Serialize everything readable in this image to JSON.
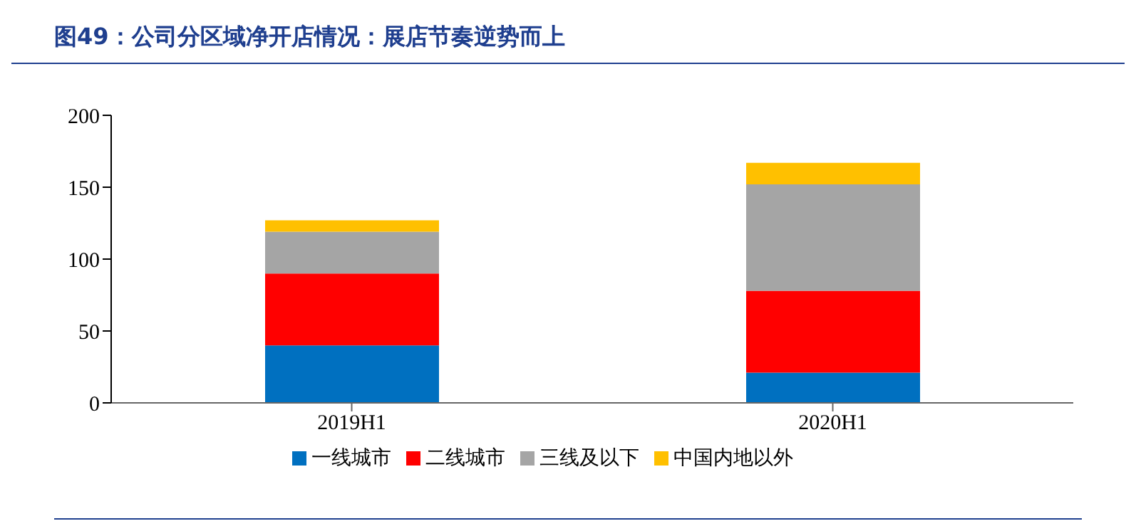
{
  "chart_data": {
    "type": "bar",
    "title": "图49：公司分区域净开店情况：展店节奏逆势而上",
    "categories": [
      "2019H1",
      "2020H1"
    ],
    "stacked": true,
    "series": [
      {
        "name": "一线城市",
        "color": "#0070c0",
        "values": [
          40,
          21
        ]
      },
      {
        "name": "二线城市",
        "color": "#ff0000",
        "values": [
          50,
          57
        ]
      },
      {
        "name": "三线及以下",
        "color": "#a5a5a5",
        "values": [
          29,
          74
        ]
      },
      {
        "name": "中国内地以外",
        "color": "#ffc000",
        "values": [
          8,
          15
        ]
      }
    ],
    "ylim": [
      0,
      200
    ],
    "yticks": [
      0,
      50,
      100,
      150,
      200
    ],
    "grid": false,
    "legend": "bottom"
  }
}
